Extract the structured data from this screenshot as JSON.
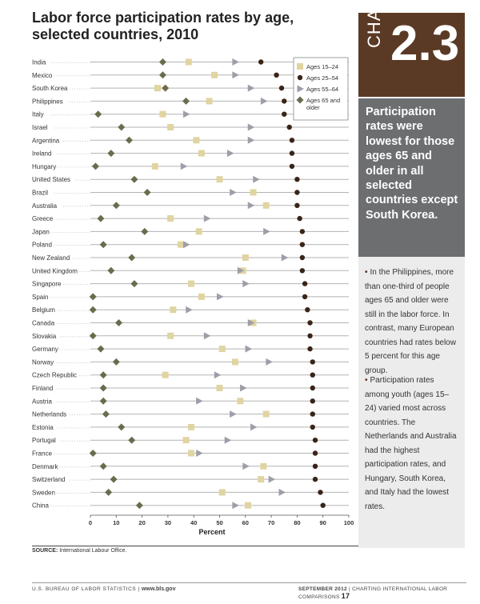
{
  "header": {
    "title": "Labor force participation rates by age, selected countries, 2010",
    "badge_word": "CHART",
    "badge_number": "2.3"
  },
  "sidebar": {
    "heading": "Participation rates were lowest for those ages 65 and older in all selected countries except South Korea.",
    "notes": [
      "In the Philippines, more than one-third of people ages 65 and older were still in the labor force. In contrast, many European countries had rates below 5 percent for this age group.",
      "Participation rates among youth (ages 15–24) varied most across countries. The Netherlands and Australia had the highest participation rates, and Hungary, South Korea, and Italy had the lowest rates."
    ],
    "bullet_symbol": "•"
  },
  "source": {
    "label": "SOURCE:",
    "text": "International Labour Office."
  },
  "footer": {
    "left": "U.S. BUREAU OF LABOR STATISTICS",
    "divider": "|",
    "url": "www.bls.gov",
    "date": "SEPTEMBER 2012",
    "publication": "CHARTING INTERNATIONAL LABOR COMPARISONS",
    "page": "17"
  },
  "colors": {
    "age_15_24": "#e0d4a0",
    "age_25_54": "#3a2418",
    "age_55_64": "#9d9ea8",
    "age_65_plus": "#6b6b4e",
    "badge_bg": "#5b3a25",
    "side_bg": "#6d6e70"
  },
  "chart_data": {
    "type": "scatter",
    "xlabel": "Percent",
    "xlim": [
      0,
      100
    ],
    "xticks": [
      0,
      10,
      20,
      30,
      40,
      50,
      60,
      70,
      80,
      90,
      100
    ],
    "grid": false,
    "legend_position": "top-right",
    "categories": [
      "India",
      "Mexico",
      "South Korea",
      "Philippines",
      "Italy",
      "Israel",
      "Argentina",
      "Ireland",
      "Hungary",
      "United States",
      "Brazil",
      "Australia",
      "Greece",
      "Japan",
      "Poland",
      "New Zealand",
      "United Kingdom",
      "Singapore",
      "Spain",
      "Belgium",
      "Canada",
      "Slovakia",
      "Germany",
      "Norway",
      "Czech Republic",
      "Finland",
      "Austria",
      "Netherlands",
      "Estonia",
      "Portugal",
      "France",
      "Denmark",
      "Switzerland",
      "Sweden",
      "China"
    ],
    "series": [
      {
        "name": "Ages 15–24",
        "marker": "square",
        "values": [
          38,
          48,
          26,
          46,
          28,
          31,
          41,
          43,
          25,
          50,
          63,
          68,
          31,
          42,
          35,
          60,
          59,
          39,
          43,
          32,
          63,
          31,
          51,
          56,
          29,
          50,
          58,
          68,
          39,
          37,
          39,
          67,
          66,
          51,
          61
        ]
      },
      {
        "name": "Ages 25–54",
        "marker": "circle",
        "values": [
          66,
          72,
          74,
          75,
          75,
          77,
          78,
          78,
          78,
          80,
          80,
          80,
          81,
          82,
          82,
          82,
          82,
          83,
          83,
          84,
          85,
          85,
          85,
          86,
          86,
          86,
          86,
          86,
          86,
          87,
          87,
          87,
          87,
          89,
          90
        ]
      },
      {
        "name": "Ages 55–64",
        "marker": "triangle",
        "values": [
          56,
          56,
          62,
          67,
          37,
          62,
          62,
          54,
          36,
          64,
          55,
          62,
          45,
          68,
          37,
          75,
          58,
          60,
          50,
          38,
          62,
          45,
          61,
          69,
          49,
          59,
          42,
          55,
          63,
          53,
          42,
          60,
          70,
          74,
          56
        ]
      },
      {
        "name": "Ages 65 and older",
        "marker": "diamond",
        "values": [
          28,
          28,
          29,
          37,
          3,
          12,
          15,
          8,
          2,
          17,
          22,
          10,
          4,
          21,
          5,
          16,
          8,
          17,
          1,
          1,
          11,
          1,
          4,
          10,
          5,
          5,
          5,
          6,
          12,
          16,
          1,
          5,
          9,
          7,
          19
        ]
      }
    ]
  }
}
